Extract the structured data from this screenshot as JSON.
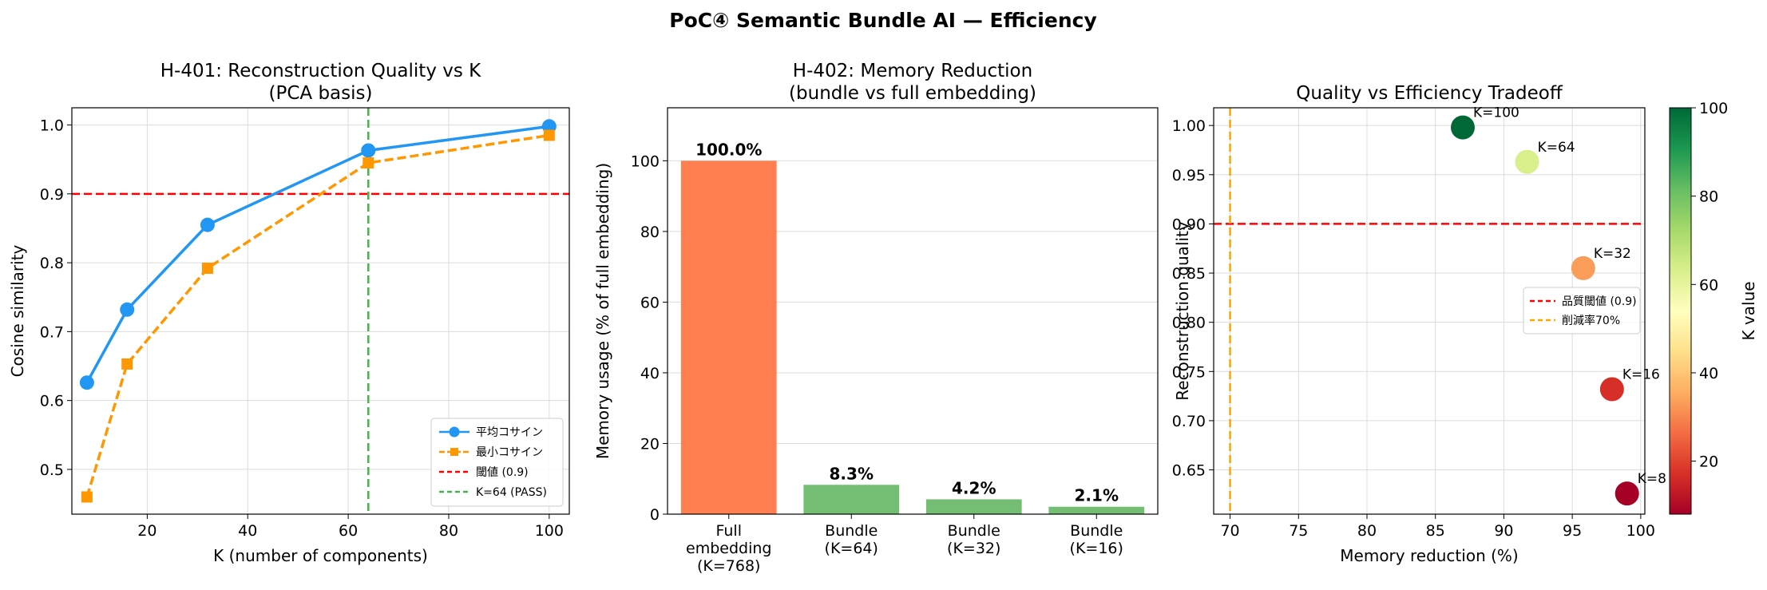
{
  "figure": {
    "suptitle": "PoC④ Semantic Bundle AI — Efficiency"
  },
  "chart_data": [
    {
      "type": "line",
      "title": "H-401: Reconstruction Quality vs K",
      "subtitle": "(PCA basis)",
      "xlabel": "K (number of components)",
      "ylabel": "Cosine similarity",
      "xlim": [
        5,
        104
      ],
      "ylim": [
        0.435,
        1.025
      ],
      "xticks": [
        20,
        40,
        60,
        80,
        100
      ],
      "yticks": [
        0.5,
        0.6,
        0.7,
        0.8,
        0.9,
        1.0
      ],
      "grid": true,
      "legend_position": "lower-right",
      "x": [
        8,
        16,
        32,
        64,
        100
      ],
      "series": [
        {
          "name": "平均コサイン",
          "values": [
            0.626,
            0.732,
            0.855,
            0.963,
            0.998
          ],
          "color": "#2196F3",
          "marker": "circle",
          "style": "solid"
        },
        {
          "name": "最小コサイン",
          "values": [
            0.46,
            0.653,
            0.792,
            0.945,
            0.985
          ],
          "color": "#FF9800",
          "marker": "square",
          "style": "dashed"
        }
      ],
      "reference_lines": [
        {
          "orientation": "horizontal",
          "value": 0.9,
          "name": "閾値 (0.9)",
          "color": "#FF0000"
        },
        {
          "orientation": "vertical",
          "value": 64,
          "name": "K=64 (PASS)",
          "color": "#4CAF50"
        }
      ]
    },
    {
      "type": "bar",
      "title": "H-402: Memory Reduction",
      "subtitle": "(bundle vs full embedding)",
      "xlabel": "",
      "ylabel": "Memory usage (% of full embedding)",
      "ylim": [
        0,
        115
      ],
      "yticks": [
        0,
        20,
        40,
        60,
        80,
        100
      ],
      "grid": true,
      "categories": [
        [
          "Full",
          "embedding",
          "(K=768)"
        ],
        [
          "Bundle",
          "(K=64)"
        ],
        [
          "Bundle",
          "(K=32)"
        ],
        [
          "Bundle",
          "(K=16)"
        ]
      ],
      "values": [
        100.0,
        8.3,
        4.2,
        2.1
      ],
      "data_labels": [
        "100.0%",
        "8.3%",
        "4.2%",
        "2.1%"
      ],
      "colors": [
        "#FF7F50",
        "#74BE73",
        "#74BE73",
        "#74BE73"
      ]
    },
    {
      "type": "scatter",
      "title": "Quality vs Efficiency Tradeoff",
      "xlabel": "Memory reduction (%)",
      "ylabel": "Reconstruction quality",
      "xlim": [
        68.8,
        100.3
      ],
      "ylim": [
        0.605,
        1.018
      ],
      "xticks": [
        70,
        75,
        80,
        85,
        90,
        95,
        100
      ],
      "yticks": [
        0.65,
        0.7,
        0.75,
        0.8,
        0.85,
        0.9,
        0.95,
        1.0
      ],
      "grid": true,
      "legend_position": "center-right",
      "points": [
        {
          "label": "K=100",
          "x": 87.0,
          "y": 0.998,
          "k": 100,
          "color": "#006837"
        },
        {
          "label": "K=64",
          "x": 91.7,
          "y": 0.963,
          "k": 64,
          "color": "#D9EF8B"
        },
        {
          "label": "K=32",
          "x": 95.8,
          "y": 0.855,
          "k": 32,
          "color": "#F99D59"
        },
        {
          "label": "K=16",
          "x": 97.9,
          "y": 0.732,
          "k": 16,
          "color": "#D62F27"
        },
        {
          "label": "K=8",
          "x": 99.0,
          "y": 0.626,
          "k": 8,
          "color": "#A50026"
        }
      ],
      "reference_lines": [
        {
          "orientation": "horizontal",
          "value": 0.9,
          "name": "品質閾値 (0.9)",
          "color": "#FF0000"
        },
        {
          "orientation": "vertical",
          "value": 70,
          "name": "削減率70%",
          "color": "#FFA500"
        }
      ],
      "colorbar": {
        "label": "K value",
        "range": [
          8,
          100
        ],
        "ticks": [
          20,
          40,
          60,
          80,
          100
        ],
        "colormap": [
          "#A50026",
          "#D73027",
          "#F46D43",
          "#FDAE61",
          "#FEE08B",
          "#FFFFBF",
          "#D9EF8B",
          "#A6D96A",
          "#66BD63",
          "#1A9850",
          "#006837"
        ]
      }
    }
  ]
}
